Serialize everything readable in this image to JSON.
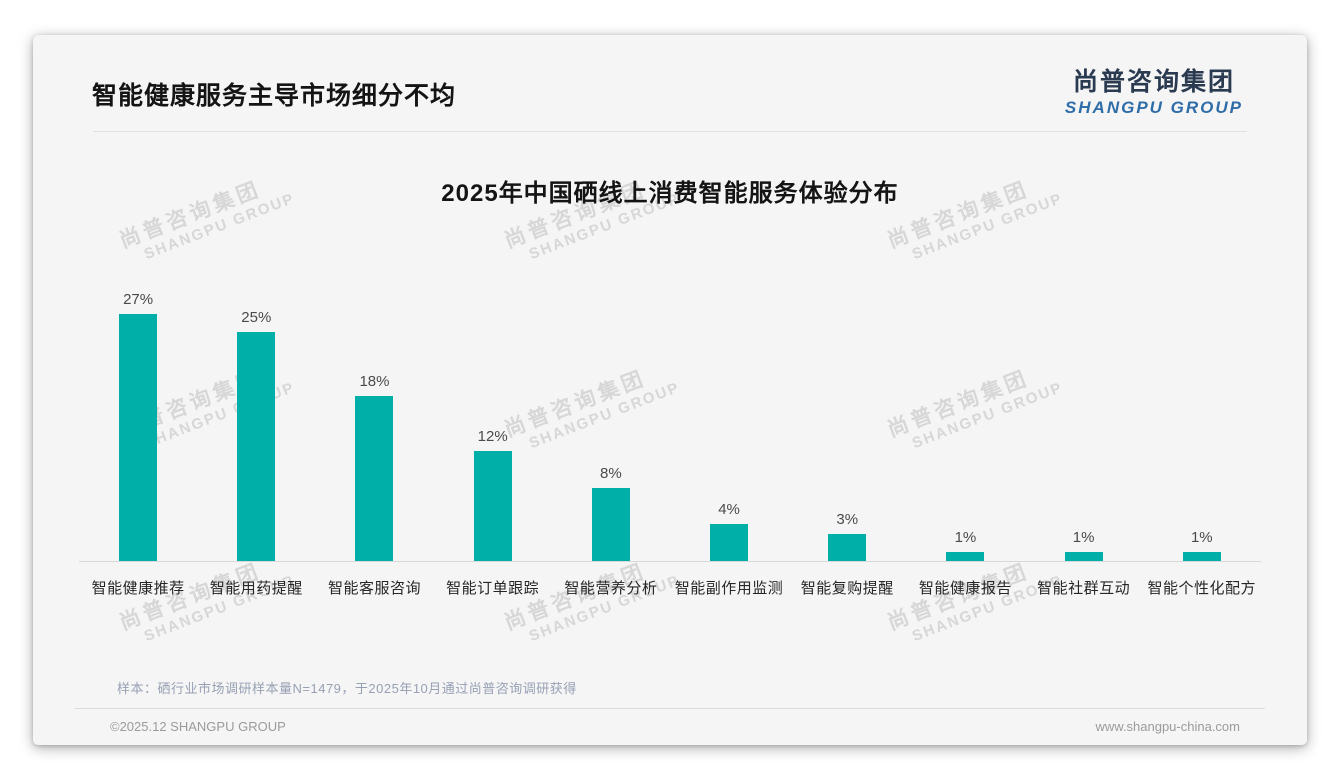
{
  "header": {
    "title": "智能健康服务主导市场细分不均"
  },
  "logo": {
    "cn": "尚普咨询集团",
    "en": "SHANGPU GROUP",
    "cn_color": "#2a3a50",
    "en_color": "#2f6da8"
  },
  "watermark": {
    "cn": "尚普咨询集团",
    "en": "SHANGPU GROUP",
    "color": "#d7d7d8"
  },
  "chart_data": {
    "type": "bar",
    "title": "2025年中国硒线上消费智能服务体验分布",
    "categories": [
      "智能健康推荐",
      "智能用药提醒",
      "智能客服咨询",
      "智能订单跟踪",
      "智能营养分析",
      "智能副作用监测",
      "智能复购提醒",
      "智能健康报告",
      "智能社群互动",
      "智能个性化配方"
    ],
    "values": [
      27,
      25,
      18,
      12,
      8,
      4,
      3,
      1,
      1,
      1
    ],
    "unit": "%",
    "bar_color": "#00b0a8",
    "value_label_suffix": "%",
    "ylim": [
      0,
      29
    ],
    "grid": false,
    "legend": false,
    "value_labels": true,
    "xlabel": "",
    "ylabel": ""
  },
  "footnote": "样本：硒行业市场调研样本量N=1479，于2025年10月通过尚普咨询调研获得",
  "footer": {
    "left": "©2025.12 SHANGPU GROUP",
    "right": "www.shangpu-china.com"
  }
}
